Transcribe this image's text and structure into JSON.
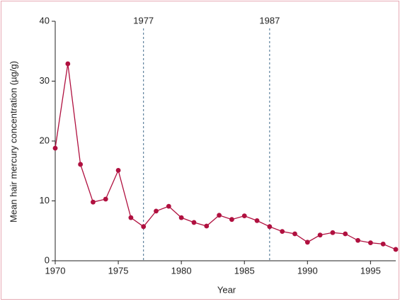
{
  "chart_data": {
    "type": "line",
    "x": [
      1970,
      1971,
      1972,
      1973,
      1974,
      1975,
      1976,
      1977,
      1978,
      1979,
      1980,
      1981,
      1982,
      1983,
      1984,
      1985,
      1986,
      1987,
      1988,
      1989,
      1990,
      1991,
      1992,
      1993,
      1994,
      1995,
      1996,
      1997
    ],
    "series": [
      {
        "color": "#b0103f",
        "values": [
          18.8,
          32.9,
          16.1,
          9.8,
          10.3,
          15.1,
          7.2,
          5.7,
          8.3,
          9.1,
          7.2,
          6.4,
          5.8,
          7.6,
          6.9,
          7.5,
          6.7,
          5.7,
          4.9,
          4.5,
          3.1,
          4.3,
          4.7,
          4.5,
          3.4,
          3.0,
          2.8,
          1.9
        ]
      }
    ],
    "xlabel": "Year",
    "ylabel": "Mean hair mercury concentration (µg/g)",
    "xlim": [
      1970,
      1997
    ],
    "xticks": [
      1970,
      1975,
      1980,
      1985,
      1990,
      1995
    ],
    "ylim": [
      0,
      40
    ],
    "yticks": [
      0,
      10,
      20,
      30,
      40
    ],
    "vlines": [
      1977,
      1987
    ],
    "vline_color": "#3f6a8a"
  }
}
